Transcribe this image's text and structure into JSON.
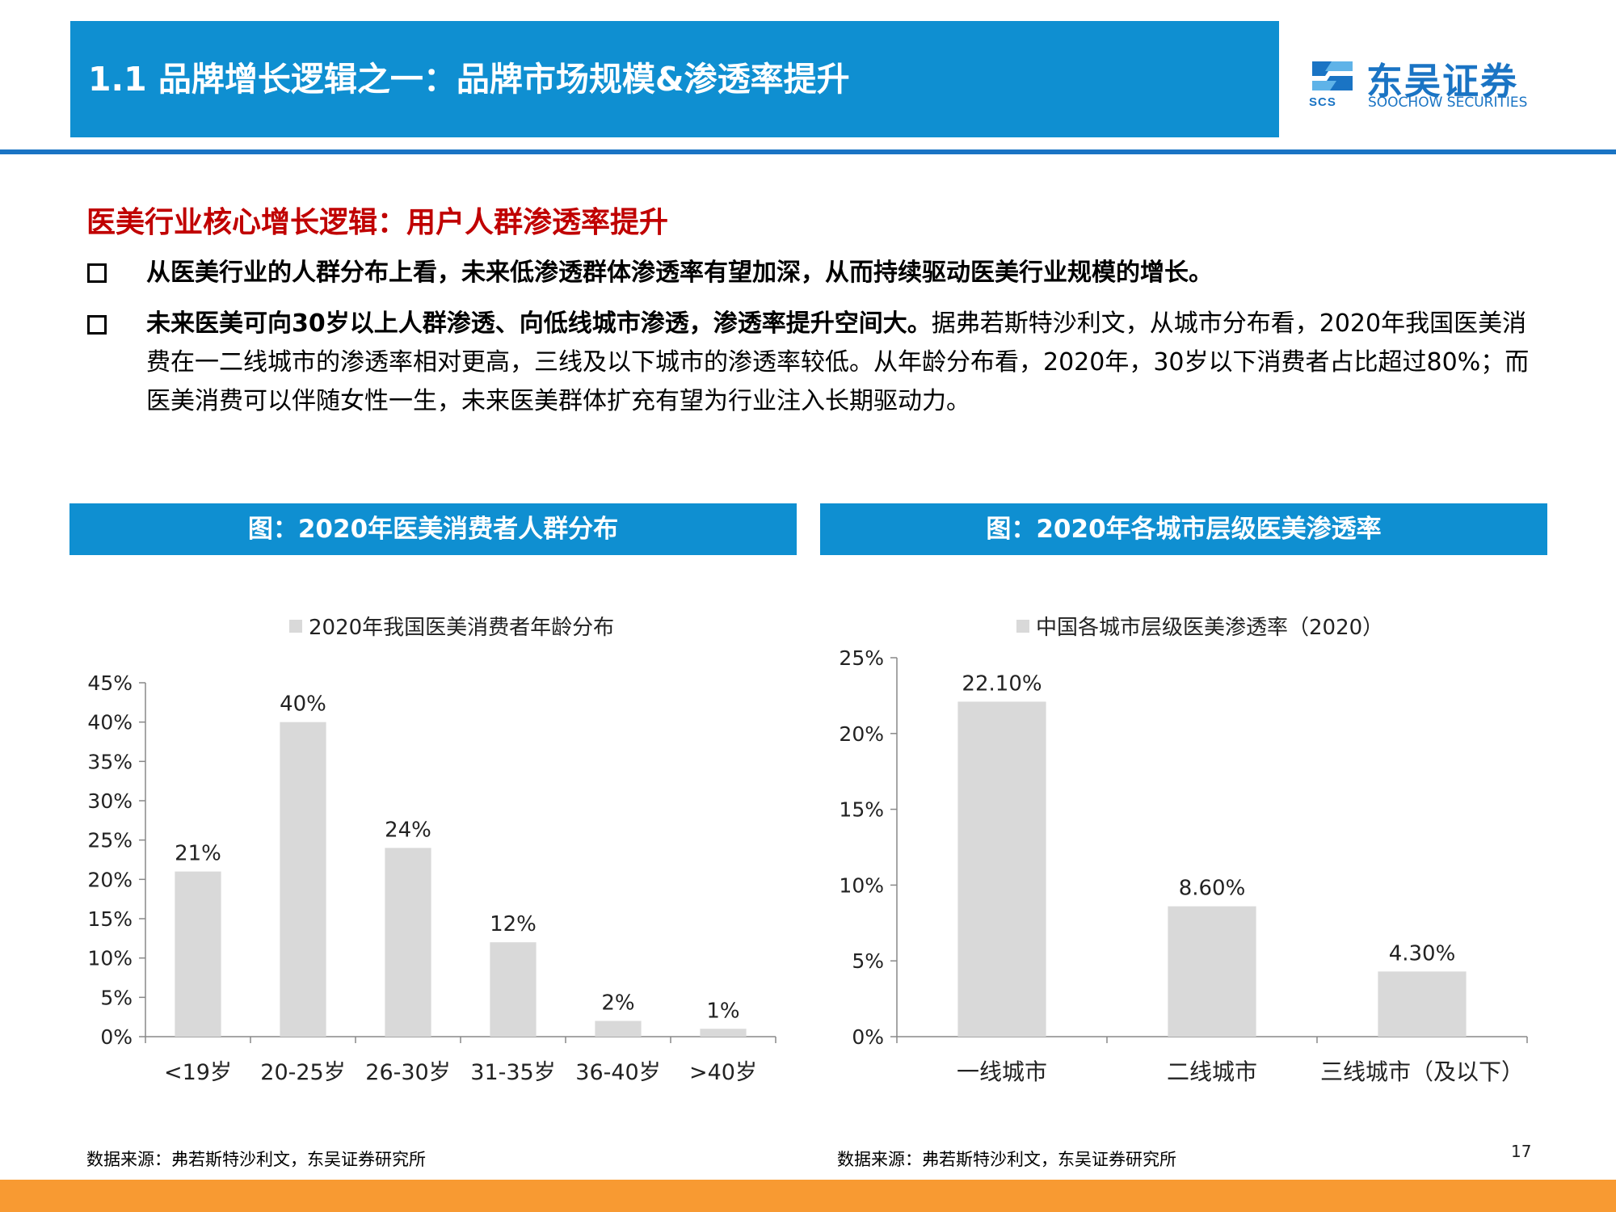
{
  "header": {
    "title": "1.1 品牌增长逻辑之一：品牌市场规模&渗透率提升",
    "logo_cn": "东吴证券",
    "logo_en": "SOOCHOW SECURITIES",
    "logo_abbr": "SCS"
  },
  "section": {
    "heading": "医美行业核心增长逻辑：用户人群渗透率提升",
    "bullets": [
      {
        "bold": "从医美行业的人群分布上看，未来低渗透群体渗透率有望加深，从而持续驱动医美行业规模的增长。",
        "text": ""
      },
      {
        "bold": "未来医美可向30岁以上人群渗透、向低线城市渗透，渗透率提升空间大。",
        "text": "据弗若斯特沙利文，从城市分布看，2020年我国医美消费在一二线城市的渗透率相对更高，三线及以下城市的渗透率较低。从年龄分布看，2020年，30岁以下消费者占比超过80%；而医美消费可以伴随女性一生，未来医美群体扩充有望为行业注入长期驱动力。"
      }
    ]
  },
  "charts": {
    "left_header": "图：2020年医美消费者人群分布",
    "right_header": "图：2020年各城市层级医美渗透率",
    "left_source": "数据来源：弗若斯特沙利文，东吴证券研究所",
    "right_source": "数据来源：弗若斯特沙利文，东吴证券研究所"
  },
  "page_number": "17",
  "chart_data": [
    {
      "type": "bar",
      "legend": "2020年我国医美消费者年龄分布",
      "categories": [
        "<19岁",
        "20-25岁",
        "26-30岁",
        "31-35岁",
        "36-40岁",
        ">40岁"
      ],
      "values": [
        21,
        40,
        24,
        12,
        2,
        1
      ],
      "data_labels": [
        "21%",
        "40%",
        "24%",
        "12%",
        "2%",
        "1%"
      ],
      "ylim": [
        0,
        45
      ],
      "yticks": [
        "0%",
        "5%",
        "10%",
        "15%",
        "20%",
        "25%",
        "30%",
        "35%",
        "40%",
        "45%"
      ],
      "bar_color": "#d9d9d9",
      "legend_position": "top"
    },
    {
      "type": "bar",
      "legend": "中国各城市层级医美渗透率（2020）",
      "categories": [
        "一线城市",
        "二线城市",
        "三线城市（及以下）"
      ],
      "values": [
        22.1,
        8.6,
        4.3
      ],
      "data_labels": [
        "22.10%",
        "8.60%",
        "4.30%"
      ],
      "ylim": [
        0,
        25
      ],
      "yticks": [
        "0%",
        "5%",
        "10%",
        "15%",
        "20%",
        "25%"
      ],
      "bar_color": "#d9d9d9",
      "legend_position": "top"
    }
  ]
}
